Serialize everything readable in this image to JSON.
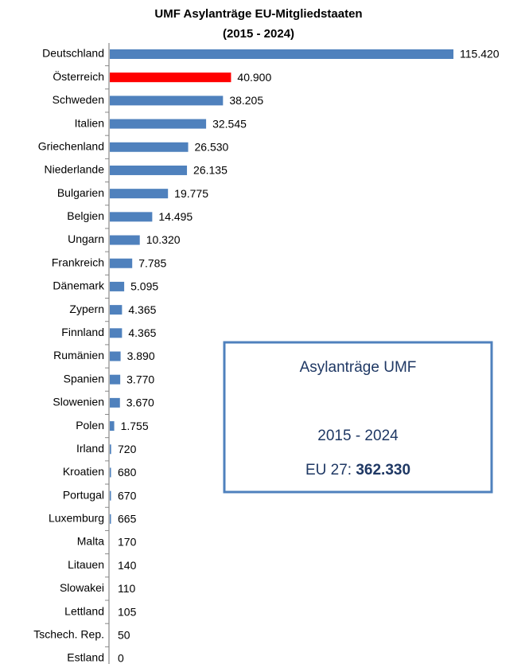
{
  "chart_data": {
    "type": "barh",
    "title": "UMF Asylanträge EU-Mitgliedstaaten",
    "subtitle": "(2015 - 2024)",
    "categories": [
      "Deutschland",
      "Österreich",
      "Schweden",
      "Italien",
      "Griechenland",
      "Niederlande",
      "Bulgarien",
      "Belgien",
      "Ungarn",
      "Frankreich",
      "Dänemark",
      "Zypern",
      "Finnland",
      "Rumänien",
      "Spanien",
      "Slowenien",
      "Polen",
      "Irland",
      "Kroatien",
      "Portugal",
      "Luxemburg",
      "Malta",
      "Litauen",
      "Slowakei",
      "Lettland",
      "Tschech. Rep.",
      "Estland"
    ],
    "values": [
      115420,
      40900,
      38205,
      32545,
      26530,
      26135,
      19775,
      14495,
      10320,
      7785,
      5095,
      4365,
      4365,
      3890,
      3770,
      3670,
      1755,
      720,
      680,
      670,
      665,
      170,
      140,
      110,
      105,
      50,
      0
    ],
    "value_labels": [
      "115.420",
      "40.900",
      "38.205",
      "32.545",
      "26.530",
      "26.135",
      "19.775",
      "14.495",
      "10.320",
      "7.785",
      "5.095",
      "4.365",
      "4.365",
      "3.890",
      "3.770",
      "3.670",
      "1.755",
      "720",
      "680",
      "670",
      "665",
      "170",
      "140",
      "110",
      "105",
      "50",
      "0"
    ],
    "colors": [
      "#4f81bd",
      "#ff0000",
      "#4f81bd",
      "#4f81bd",
      "#4f81bd",
      "#4f81bd",
      "#4f81bd",
      "#4f81bd",
      "#4f81bd",
      "#4f81bd",
      "#4f81bd",
      "#4f81bd",
      "#4f81bd",
      "#4f81bd",
      "#4f81bd",
      "#4f81bd",
      "#4f81bd",
      "#4f81bd",
      "#4f81bd",
      "#4f81bd",
      "#4f81bd",
      "#4f81bd",
      "#4f81bd",
      "#4f81bd",
      "#4f81bd",
      "#4f81bd",
      "#4f81bd"
    ],
    "annotation": {
      "heading": "Asylanträge UMF",
      "period": "2015 - 2024",
      "total_label": "EU 27:",
      "total": "362.330"
    }
  }
}
